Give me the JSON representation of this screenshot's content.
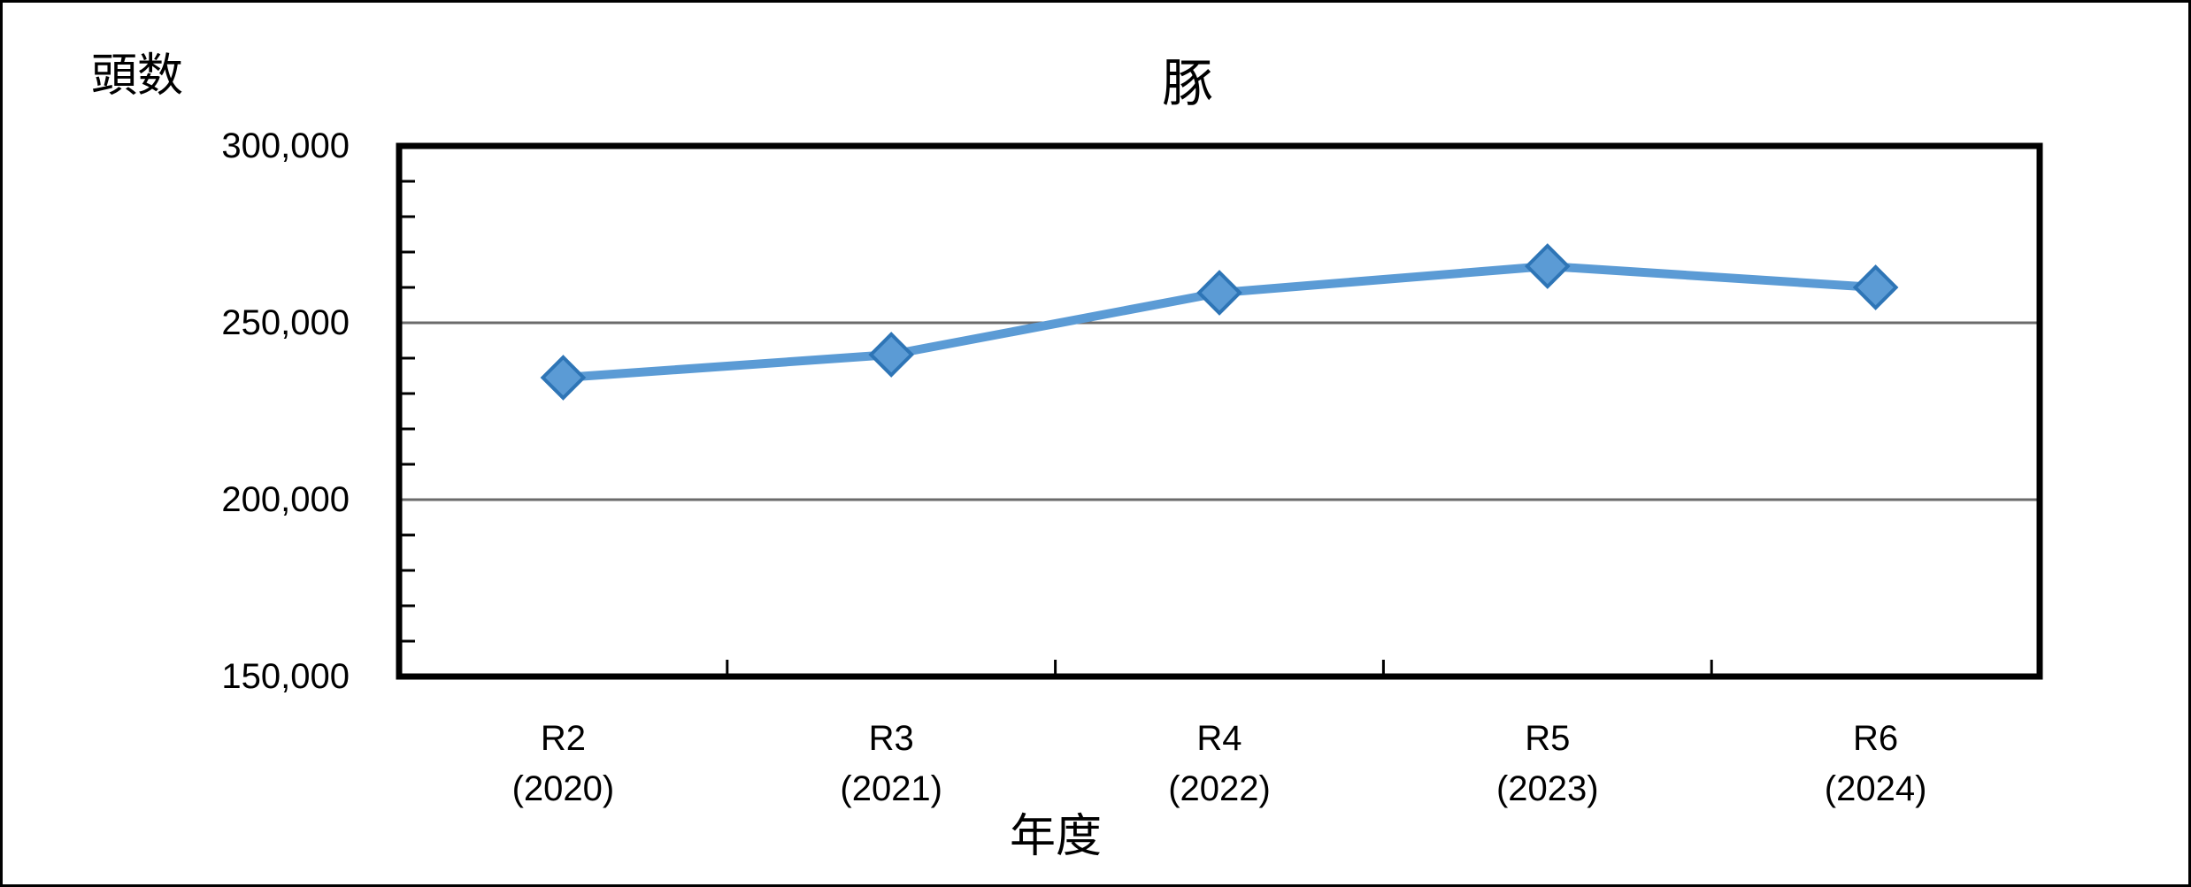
{
  "figure_title": "豚",
  "y_axis": {
    "unit_label": "頭数",
    "tick_labels": [
      "300,000",
      "250,000",
      "200,000",
      "150,000"
    ],
    "tick_values": [
      300000,
      250000,
      200000,
      150000
    ]
  },
  "x_axis": {
    "title": "年度",
    "categories": [
      {
        "era": "R2",
        "year": "(2020)"
      },
      {
        "era": "R3",
        "year": "(2021)"
      },
      {
        "era": "R4",
        "year": "(2022)"
      },
      {
        "era": "R5",
        "year": "(2023)"
      },
      {
        "era": "R6",
        "year": "(2024)"
      }
    ]
  },
  "chart_data": {
    "type": "line",
    "title": "豚",
    "xlabel": "年度",
    "ylabel": "頭数",
    "categories": [
      "R2 (2020)",
      "R3 (2021)",
      "R4 (2022)",
      "R5 (2023)",
      "R6 (2024)"
    ],
    "series": [
      {
        "name": "豚",
        "values": [
          234500,
          241000,
          258500,
          266000,
          260000
        ]
      }
    ],
    "ylim": [
      150000,
      300000
    ],
    "ytick_step": 50000,
    "minor_ytick_step": 10000,
    "grid": "horizontal-major",
    "legend_position": "none",
    "marker": "diamond",
    "colors": {
      "line": "#5B9BD5",
      "marker_fill": "#5B9BD5",
      "marker_border": "#2E75B6",
      "gridline": "#6b6b6b",
      "axis": "#000000"
    }
  }
}
